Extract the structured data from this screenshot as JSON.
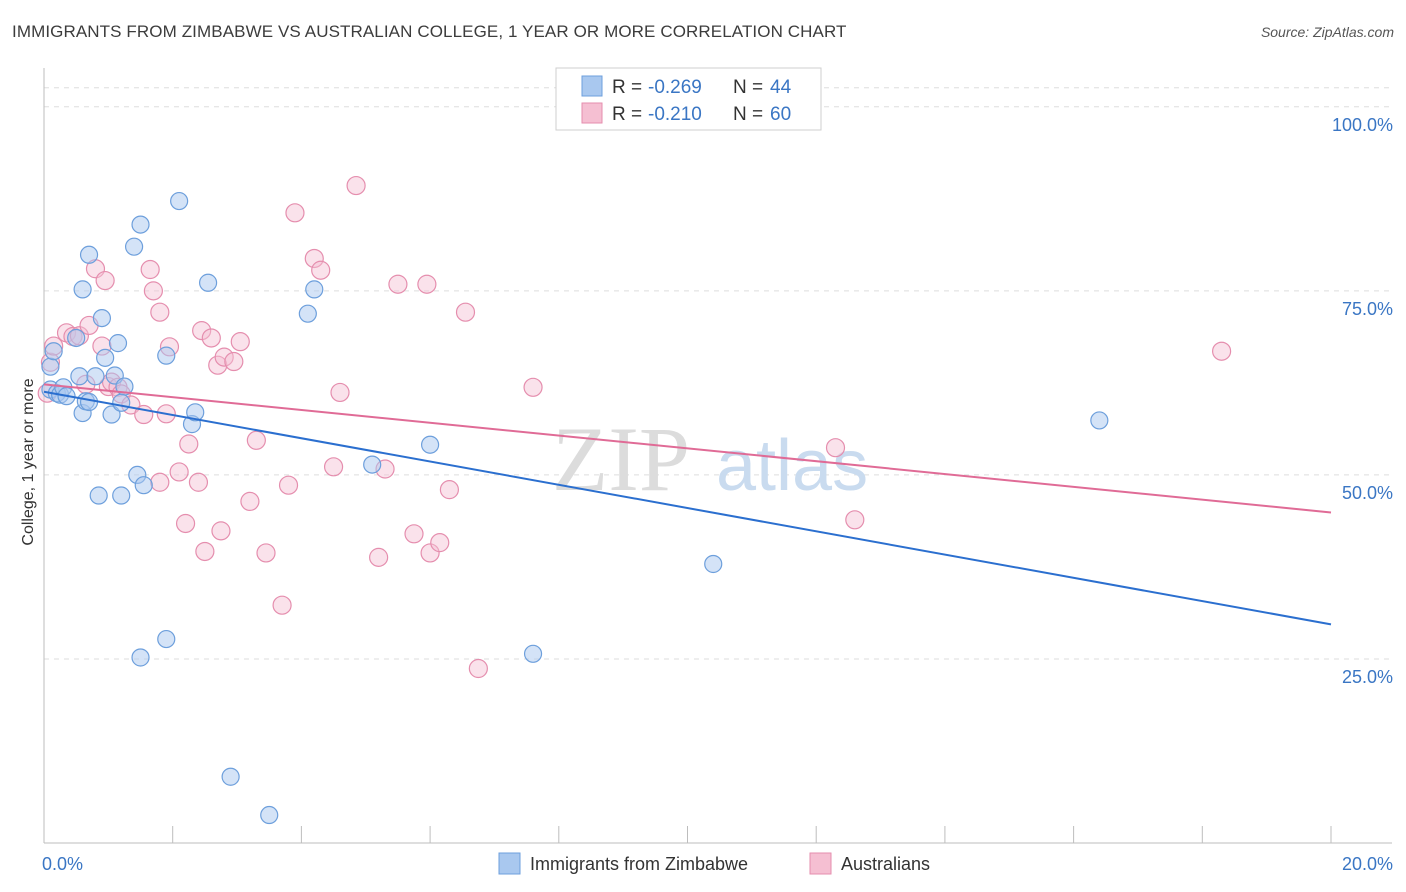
{
  "title": "IMMIGRANTS FROM ZIMBABWE VS AUSTRALIAN COLLEGE, 1 YEAR OR MORE CORRELATION CHART",
  "source": "Source: ZipAtlas.com",
  "watermark": {
    "zip": "ZIP",
    "atlas": "atlas"
  },
  "colors": {
    "blue_fill": "#a9c8ef",
    "blue_stroke": "#6d9fdc",
    "blue_line": "#2b6fcf",
    "pink_fill": "#f5bfd2",
    "pink_stroke": "#e58eae",
    "pink_line": "#e06b96",
    "tick_text": "#3a76c4",
    "grid": "#dedede"
  },
  "legend": {
    "rows": [
      {
        "r_label": "R =",
        "r_value": "-0.269",
        "n_label": "N =",
        "n_value": "44"
      },
      {
        "r_label": "R =",
        "r_value": "-0.210",
        "n_label": "N =",
        "n_value": "60"
      }
    ]
  },
  "chart_data": {
    "type": "scatter",
    "title": "IMMIGRANTS FROM ZIMBABWE VS AUSTRALIAN COLLEGE, 1 YEAR OR MORE CORRELATION CHART",
    "xlabel": "",
    "ylabel": "College, 1 year or more",
    "xlim": [
      0,
      20
    ],
    "ylim": [
      0,
      105
    ],
    "x_tick_labels": [
      "0.0%",
      "20.0%"
    ],
    "y_ticks": [
      25,
      50,
      75,
      100
    ],
    "y_tick_labels": [
      "25.0%",
      "50.0%",
      "75.0%",
      "100.0%"
    ],
    "grid": true,
    "legend_position": "top-center",
    "series": [
      {
        "name": "Immigrants from Zimbabwe",
        "color": "blue",
        "R": -0.269,
        "N": 44,
        "trend": {
          "x": [
            0,
            20
          ],
          "y": [
            61.3,
            29.7
          ]
        },
        "points": [
          [
            0.1,
            64.7
          ],
          [
            0.1,
            61.6
          ],
          [
            0.15,
            66.8
          ],
          [
            0.2,
            61.1
          ],
          [
            0.25,
            60.9
          ],
          [
            0.3,
            61.9
          ],
          [
            0.35,
            60.7
          ],
          [
            0.5,
            68.6
          ],
          [
            0.55,
            63.4
          ],
          [
            0.6,
            58.4
          ],
          [
            0.65,
            60.0
          ],
          [
            0.7,
            59.9
          ],
          [
            0.8,
            63.4
          ],
          [
            0.85,
            47.2
          ],
          [
            0.9,
            71.3
          ],
          [
            0.95,
            65.9
          ],
          [
            1.05,
            58.2
          ],
          [
            1.1,
            63.5
          ],
          [
            1.15,
            67.9
          ],
          [
            1.2,
            47.2
          ],
          [
            1.25,
            62.0
          ],
          [
            1.4,
            81.0
          ],
          [
            1.5,
            84.0
          ],
          [
            1.45,
            50.0
          ],
          [
            1.55,
            48.6
          ],
          [
            1.5,
            25.2
          ],
          [
            1.9,
            66.2
          ],
          [
            1.9,
            27.7
          ],
          [
            2.1,
            87.2
          ],
          [
            2.3,
            56.9
          ],
          [
            2.35,
            58.5
          ],
          [
            2.55,
            76.1
          ],
          [
            2.9,
            9.0
          ],
          [
            3.5,
            3.8
          ],
          [
            4.1,
            71.9
          ],
          [
            4.2,
            75.2
          ],
          [
            5.1,
            51.4
          ],
          [
            6.0,
            54.1
          ],
          [
            7.6,
            25.7
          ],
          [
            10.4,
            37.9
          ],
          [
            16.4,
            57.4
          ],
          [
            0.6,
            75.2
          ],
          [
            0.7,
            79.9
          ],
          [
            1.2,
            59.8
          ]
        ]
      },
      {
        "name": "Australians",
        "color": "pink",
        "R": -0.21,
        "N": 60,
        "trend": {
          "x": [
            0,
            20
          ],
          "y": [
            62.3,
            44.9
          ]
        },
        "points": [
          [
            0.05,
            61.1
          ],
          [
            0.1,
            65.3
          ],
          [
            0.15,
            67.5
          ],
          [
            0.35,
            69.3
          ],
          [
            0.45,
            68.8
          ],
          [
            0.55,
            68.9
          ],
          [
            0.65,
            62.3
          ],
          [
            0.7,
            70.3
          ],
          [
            0.8,
            78.0
          ],
          [
            0.9,
            67.5
          ],
          [
            0.95,
            76.4
          ],
          [
            1.0,
            62.0
          ],
          [
            1.05,
            62.6
          ],
          [
            1.15,
            61.9
          ],
          [
            1.2,
            61.0
          ],
          [
            1.35,
            59.5
          ],
          [
            1.55,
            58.2
          ],
          [
            1.65,
            77.9
          ],
          [
            1.7,
            75.0
          ],
          [
            1.8,
            72.1
          ],
          [
            1.8,
            49.0
          ],
          [
            1.9,
            58.3
          ],
          [
            1.95,
            67.4
          ],
          [
            2.1,
            50.4
          ],
          [
            2.2,
            43.4
          ],
          [
            2.25,
            54.2
          ],
          [
            2.4,
            49.0
          ],
          [
            2.45,
            69.6
          ],
          [
            2.5,
            39.6
          ],
          [
            2.6,
            68.6
          ],
          [
            2.7,
            64.9
          ],
          [
            2.75,
            42.4
          ],
          [
            2.8,
            66.0
          ],
          [
            2.95,
            65.4
          ],
          [
            3.05,
            68.1
          ],
          [
            3.2,
            46.4
          ],
          [
            3.3,
            54.7
          ],
          [
            3.45,
            39.4
          ],
          [
            3.7,
            32.3
          ],
          [
            3.8,
            48.6
          ],
          [
            3.9,
            85.6
          ],
          [
            4.2,
            79.4
          ],
          [
            4.3,
            77.8
          ],
          [
            4.5,
            51.1
          ],
          [
            4.6,
            61.2
          ],
          [
            4.85,
            89.3
          ],
          [
            5.2,
            38.8
          ],
          [
            5.3,
            50.8
          ],
          [
            5.5,
            75.9
          ],
          [
            5.75,
            42.0
          ],
          [
            5.95,
            75.9
          ],
          [
            6.0,
            39.4
          ],
          [
            6.15,
            40.8
          ],
          [
            6.3,
            48.0
          ],
          [
            6.55,
            72.1
          ],
          [
            6.75,
            23.7
          ],
          [
            7.6,
            61.9
          ],
          [
            12.3,
            53.7
          ],
          [
            12.6,
            43.9
          ],
          [
            18.3,
            66.8
          ]
        ]
      }
    ]
  },
  "bottom_legend": [
    {
      "label": "Immigrants from Zimbabwe"
    },
    {
      "label": "Australians"
    }
  ]
}
